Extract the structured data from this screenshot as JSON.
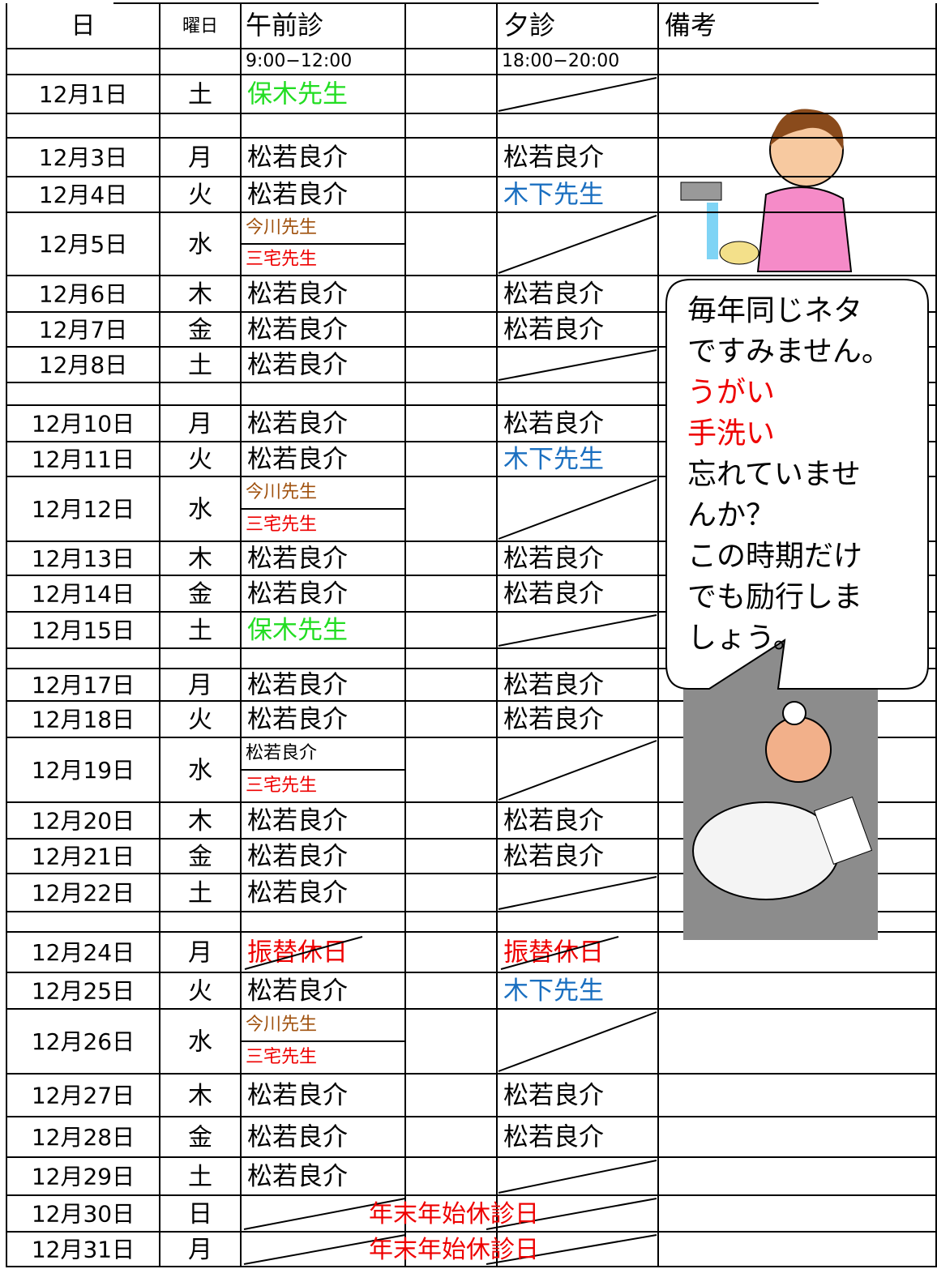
{
  "header": {
    "date": "日",
    "weekday": "曜日",
    "am": "午前診",
    "pm": "夕診",
    "note": "備考"
  },
  "hours": {
    "am": "9:00−12:00",
    "pm": "18:00−20:00"
  },
  "rows": [
    {
      "date": "12月1日",
      "weekday": "土",
      "am": [
        {
          "text": "保木先生",
          "color": "#22dd22"
        }
      ]
    },
    {
      "date": "12月3日",
      "weekday": "月",
      "am": [
        {
          "text": "松若良介",
          "color": "#000000"
        }
      ],
      "pm": {
        "text": "松若良介",
        "color": "#000000"
      }
    },
    {
      "date": "12月4日",
      "weekday": "火",
      "am": [
        {
          "text": "松若良介",
          "color": "#000000"
        }
      ],
      "pm": {
        "text": "木下先生",
        "color": "#1a6fc0"
      }
    },
    {
      "date": "12月5日",
      "weekday": "水",
      "am": [
        {
          "text": "今川先生",
          "color": "#a0520f"
        },
        {
          "text": "三宅先生",
          "color": "#ee0000"
        }
      ]
    },
    {
      "date": "12月6日",
      "weekday": "木",
      "am": [
        {
          "text": "松若良介",
          "color": "#000000"
        }
      ],
      "pm": {
        "text": "松若良介",
        "color": "#000000"
      }
    },
    {
      "date": "12月7日",
      "weekday": "金",
      "am": [
        {
          "text": "松若良介",
          "color": "#000000"
        }
      ],
      "pm": {
        "text": "松若良介",
        "color": "#000000"
      }
    },
    {
      "date": "12月8日",
      "weekday": "土",
      "am": [
        {
          "text": "松若良介",
          "color": "#000000"
        }
      ]
    },
    {
      "date": "12月10日",
      "weekday": "月",
      "am": [
        {
          "text": "松若良介",
          "color": "#000000"
        }
      ],
      "pm": {
        "text": "松若良介",
        "color": "#000000"
      }
    },
    {
      "date": "12月11日",
      "weekday": "火",
      "am": [
        {
          "text": "松若良介",
          "color": "#000000"
        }
      ],
      "pm": {
        "text": "木下先生",
        "color": "#1a6fc0"
      }
    },
    {
      "date": "12月12日",
      "weekday": "水",
      "am": [
        {
          "text": "今川先生",
          "color": "#a0520f"
        },
        {
          "text": "三宅先生",
          "color": "#ee0000"
        }
      ]
    },
    {
      "date": "12月13日",
      "weekday": "木",
      "am": [
        {
          "text": "松若良介",
          "color": "#000000"
        }
      ],
      "pm": {
        "text": "松若良介",
        "color": "#000000"
      }
    },
    {
      "date": "12月14日",
      "weekday": "金",
      "am": [
        {
          "text": "松若良介",
          "color": "#000000"
        }
      ],
      "pm": {
        "text": "松若良介",
        "color": "#000000"
      }
    },
    {
      "date": "12月15日",
      "weekday": "土",
      "am": [
        {
          "text": "保木先生",
          "color": "#22dd22"
        }
      ]
    },
    {
      "date": "12月17日",
      "weekday": "月",
      "am": [
        {
          "text": "松若良介",
          "color": "#000000"
        }
      ],
      "pm": {
        "text": "松若良介",
        "color": "#000000"
      }
    },
    {
      "date": "12月18日",
      "weekday": "火",
      "am": [
        {
          "text": "松若良介",
          "color": "#000000"
        }
      ],
      "pm": {
        "text": "松若良介",
        "color": "#000000"
      }
    },
    {
      "date": "12月19日",
      "weekday": "水",
      "am": [
        {
          "text": "松若良介",
          "color": "#000000"
        },
        {
          "text": "三宅先生",
          "color": "#ee0000"
        }
      ]
    },
    {
      "date": "12月20日",
      "weekday": "木",
      "am": [
        {
          "text": "松若良介",
          "color": "#000000"
        }
      ],
      "pm": {
        "text": "松若良介",
        "color": "#000000"
      }
    },
    {
      "date": "12月21日",
      "weekday": "金",
      "am": [
        {
          "text": "松若良介",
          "color": "#000000"
        }
      ],
      "pm": {
        "text": "松若良介",
        "color": "#000000"
      }
    },
    {
      "date": "12月22日",
      "weekday": "土",
      "am": [
        {
          "text": "松若良介",
          "color": "#000000"
        }
      ]
    },
    {
      "date": "12月24日",
      "weekday": "月",
      "am": [
        {
          "text": "振替休日",
          "color": "#ee0000",
          "strike": true
        }
      ],
      "pm": {
        "text": "振替休日",
        "color": "#ee0000",
        "strike": true
      }
    },
    {
      "date": "12月25日",
      "weekday": "火",
      "am": [
        {
          "text": "松若良介",
          "color": "#000000"
        }
      ],
      "pm": {
        "text": "木下先生",
        "color": "#1a6fc0"
      }
    },
    {
      "date": "12月26日",
      "weekday": "水",
      "am": [
        {
          "text": "今川先生",
          "color": "#a0520f"
        },
        {
          "text": "三宅先生",
          "color": "#ee0000"
        }
      ]
    },
    {
      "date": "12月27日",
      "weekday": "木",
      "am": [
        {
          "text": "松若良介",
          "color": "#000000"
        }
      ],
      "pm": {
        "text": "松若良介",
        "color": "#000000"
      }
    },
    {
      "date": "12月28日",
      "weekday": "金",
      "am": [
        {
          "text": "松若良介",
          "color": "#000000"
        }
      ],
      "pm": {
        "text": "松若良介",
        "color": "#000000"
      }
    },
    {
      "date": "12月29日",
      "weekday": "土",
      "am": [
        {
          "text": "松若良介",
          "color": "#000000"
        }
      ]
    },
    {
      "date": "12月30日",
      "weekday": "日",
      "closed": {
        "text": "年末年始休診日",
        "color": "#ee0000"
      }
    },
    {
      "date": "12月31日",
      "weekday": "月",
      "closed": {
        "text": "年末年始休診日",
        "color": "#ee0000"
      }
    }
  ],
  "bubble": [
    {
      "text": "毎年同じネタ",
      "color": "#000000"
    },
    {
      "text": "ですみません。",
      "color": "#000000"
    },
    {
      "text": "うがい",
      "color": "#ee0000"
    },
    {
      "text": "手洗い",
      "color": "#ee0000"
    },
    {
      "text": "忘れていませ",
      "color": "#000000"
    },
    {
      "text": "んか？",
      "color": "#000000"
    },
    {
      "text": "この時期だけ",
      "color": "#000000"
    },
    {
      "text": "でも励行しま",
      "color": "#000000"
    },
    {
      "text": "しょう。",
      "color": "#000000"
    }
  ]
}
